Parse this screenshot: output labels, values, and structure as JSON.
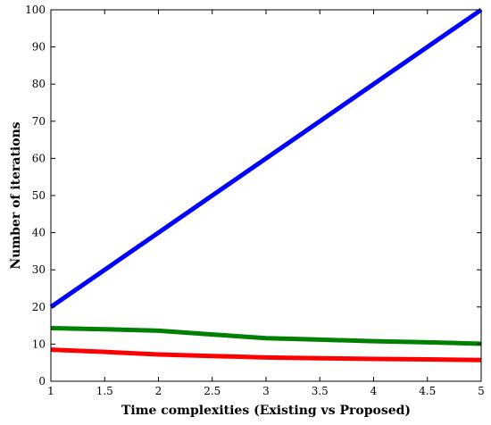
{
  "chart_data": {
    "type": "line",
    "title": "",
    "xlabel": "Time complexities (Existing vs Proposed)",
    "ylabel": "Number of iterations",
    "xlim": [
      1,
      5
    ],
    "ylim": [
      0,
      100
    ],
    "x_ticks": [
      1,
      1.5,
      2,
      2.5,
      3,
      3.5,
      4,
      4.5,
      5
    ],
    "x_tick_labels": [
      "1",
      "1.5",
      "2",
      "2.5",
      "3",
      "3.5",
      "4",
      "4.5",
      "5"
    ],
    "y_ticks": [
      0,
      10,
      20,
      30,
      40,
      50,
      60,
      70,
      80,
      90,
      100
    ],
    "y_tick_labels": [
      "0",
      "10",
      "20",
      "30",
      "40",
      "50",
      "60",
      "70",
      "80",
      "90",
      "100"
    ],
    "grid": false,
    "legend": "none",
    "series": [
      {
        "color": "#0000ff",
        "x": [
          1,
          2,
          3,
          4,
          5
        ],
        "y": [
          20,
          40,
          60,
          80,
          100
        ]
      },
      {
        "color": "#008000",
        "x": [
          1,
          1.5,
          2,
          2.5,
          3,
          3.5,
          4,
          4.5,
          5
        ],
        "y": [
          14.3,
          14.0,
          13.6,
          12.6,
          11.6,
          11.2,
          10.8,
          10.5,
          10.1
        ]
      },
      {
        "color": "#ff0000",
        "x": [
          1,
          1.5,
          2,
          2.5,
          3,
          3.5,
          4,
          4.5,
          5
        ],
        "y": [
          8.5,
          7.9,
          7.2,
          6.8,
          6.4,
          6.2,
          6.0,
          5.9,
          5.7
        ]
      }
    ]
  }
}
